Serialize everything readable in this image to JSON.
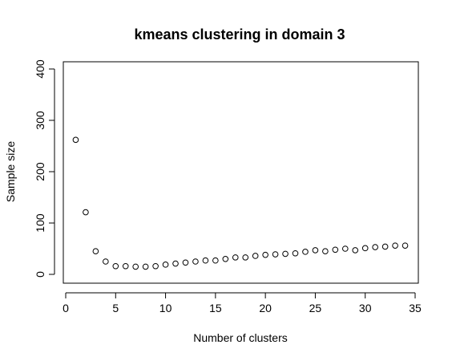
{
  "chart_data": {
    "type": "scatter",
    "title": "kmeans clustering in domain 3",
    "xlabel": "Number of clusters",
    "ylabel": "Sample size",
    "xlim": [
      0,
      35
    ],
    "ylim": [
      0,
      400
    ],
    "xticks": [
      0,
      5,
      10,
      15,
      20,
      25,
      30,
      35
    ],
    "yticks": [
      0,
      100,
      200,
      300,
      400
    ],
    "marker": "open-circle",
    "grid": false,
    "series": [
      {
        "x": [
          1,
          2,
          3,
          4,
          5,
          6,
          7,
          8,
          9,
          10,
          11,
          12,
          13,
          14,
          15,
          16,
          17,
          18,
          19,
          20,
          21,
          22,
          23,
          24,
          25,
          26,
          27,
          28,
          29,
          30,
          31,
          32,
          33,
          34
        ],
        "y": [
          262,
          121,
          45,
          25,
          16,
          16,
          15,
          15,
          16,
          19,
          21,
          23,
          25,
          27,
          27,
          30,
          33,
          33,
          36,
          38,
          39,
          40,
          41,
          44,
          47,
          45,
          48,
          50,
          47,
          51,
          53,
          54,
          56,
          56
        ]
      }
    ]
  }
}
